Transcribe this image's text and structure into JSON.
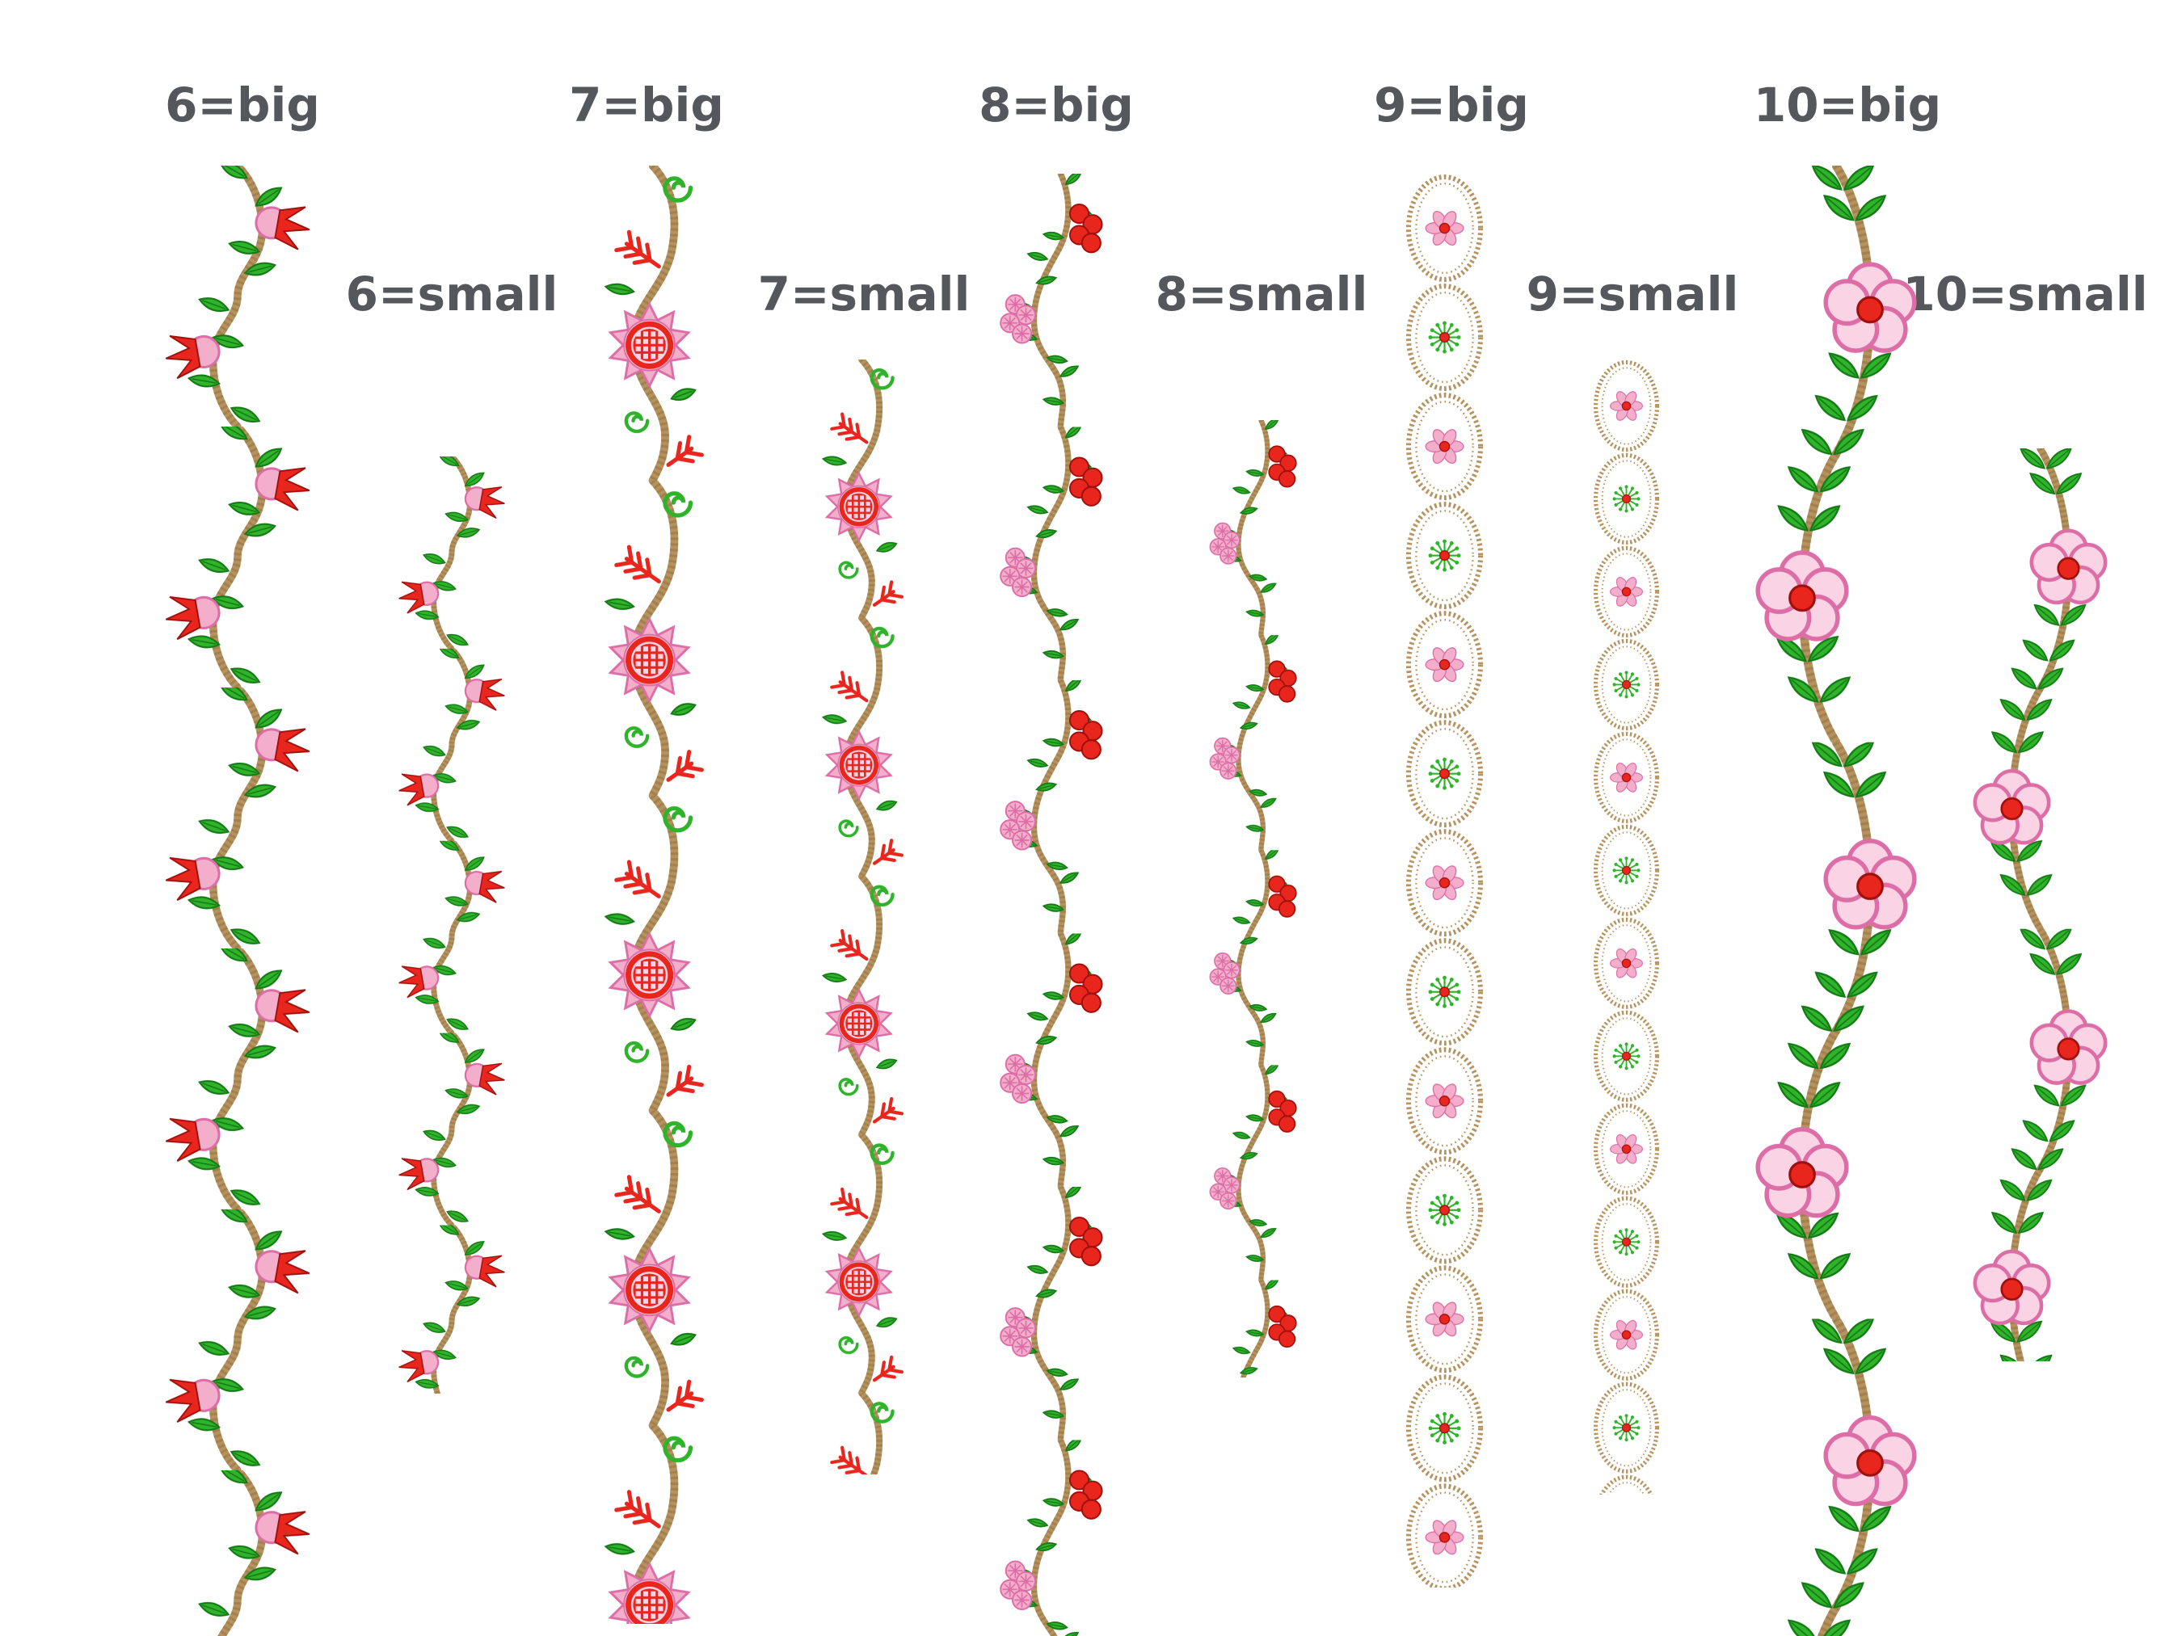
{
  "page": {
    "background": "#ffffff"
  },
  "colors": {
    "label": "#54585d",
    "stem": "#b5925e",
    "stem_dark": "#8f6f3f",
    "green": "#2fb32a",
    "green_dark": "#147a15",
    "red": "#e8261d",
    "red_dark": "#9e100b",
    "pink": "#f3aecb",
    "pink_light": "#fad4e4",
    "pink_deep": "#dd6da6"
  },
  "designs": [
    {
      "id": "6-big",
      "label": "6=big",
      "size": "big",
      "motif": "tulip-vine"
    },
    {
      "id": "6-small",
      "label": "6=small",
      "size": "small",
      "motif": "tulip-vine"
    },
    {
      "id": "7-big",
      "label": "7=big",
      "size": "big",
      "motif": "sunflower-spiral-vine"
    },
    {
      "id": "7-small",
      "label": "7=small",
      "size": "small",
      "motif": "sunflower-spiral-vine"
    },
    {
      "id": "8-big",
      "label": "8=big",
      "size": "big",
      "motif": "berry-leaf-vine"
    },
    {
      "id": "8-small",
      "label": "8=small",
      "size": "small",
      "motif": "berry-leaf-vine"
    },
    {
      "id": "9-big",
      "label": "9=big",
      "size": "big",
      "motif": "flower-chain"
    },
    {
      "id": "9-small",
      "label": "9=small",
      "size": "small",
      "motif": "flower-chain"
    },
    {
      "id": "10-big",
      "label": "10=big",
      "size": "big",
      "motif": "flower-leaf-vine"
    },
    {
      "id": "10-small",
      "label": "10=small",
      "size": "small",
      "motif": "flower-leaf-vine"
    }
  ]
}
